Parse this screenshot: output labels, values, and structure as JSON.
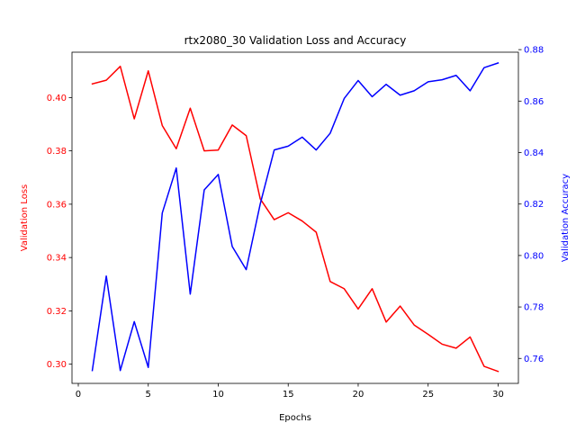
{
  "chart_data": {
    "type": "line",
    "title": "rtx2080_30 Validation Loss and Accuracy",
    "xlabel": "Epochs",
    "ylabel_left": "Validation Loss",
    "ylabel_right": "Validation Accuracy",
    "xlim": [
      -0.45,
      31.45
    ],
    "ylim_left": [
      0.2928,
      0.417
    ],
    "ylim_right": [
      0.7503,
      0.879
    ],
    "xticks": [
      0,
      5,
      10,
      15,
      20,
      25,
      30
    ],
    "yticks_left": [
      "0.30",
      "0.32",
      "0.34",
      "0.36",
      "0.38",
      "0.40"
    ],
    "yticks_right": [
      "0.76",
      "0.78",
      "0.80",
      "0.82",
      "0.84",
      "0.86",
      "0.88"
    ],
    "x": [
      1,
      2,
      3,
      4,
      5,
      6,
      7,
      8,
      9,
      10,
      11,
      12,
      13,
      14,
      15,
      16,
      17,
      18,
      19,
      20,
      21,
      22,
      23,
      24,
      25,
      26,
      27,
      28,
      29,
      30
    ],
    "series": [
      {
        "name": "Validation Loss",
        "axis": "left",
        "color": "#ff0000",
        "values": [
          0.4051,
          0.4065,
          0.4117,
          0.392,
          0.41,
          0.3895,
          0.3808,
          0.396,
          0.38,
          0.3803,
          0.3897,
          0.3857,
          0.362,
          0.3542,
          0.3568,
          0.3537,
          0.3495,
          0.331,
          0.3283,
          0.3207,
          0.3283,
          0.3158,
          0.3218,
          0.3147,
          0.3112,
          0.3075,
          0.306,
          0.3102,
          0.2992,
          0.2973
        ]
      },
      {
        "name": "Validation Accuracy",
        "axis": "right",
        "color": "#0000ff",
        "values": [
          0.7553,
          0.792,
          0.7553,
          0.7743,
          0.7565,
          0.8165,
          0.834,
          0.785,
          0.8255,
          0.8315,
          0.8035,
          0.7945,
          0.82,
          0.841,
          0.8425,
          0.846,
          0.841,
          0.8475,
          0.861,
          0.868,
          0.8617,
          0.8665,
          0.8623,
          0.864,
          0.8675,
          0.8683,
          0.87,
          0.864,
          0.873,
          0.8748
        ]
      }
    ],
    "colors": {
      "left_axis": "#ff0000",
      "right_axis": "#0000ff"
    }
  }
}
